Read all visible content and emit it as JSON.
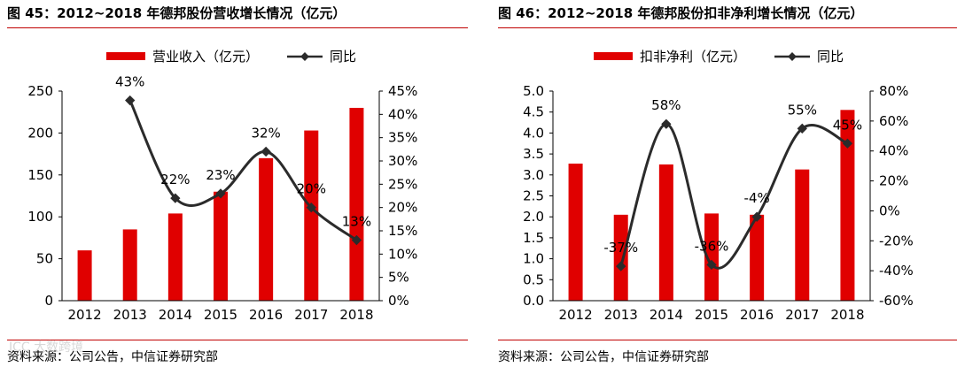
{
  "charts": [
    {
      "figure_title": "图 45：2012~2018 年德邦股份营收增长情况（亿元）",
      "source": "资料来源：公司公告，中信证券研究部",
      "legend": {
        "bar": "营业收入（亿元）",
        "line": "同比"
      }
    },
    {
      "figure_title": "图 46：2012~2018 年德邦股份扣非净利增长情况（亿元）",
      "source": "资料来源：公司公告，中信证券研究部",
      "legend": {
        "bar": "扣非净利（亿元）",
        "line": "同比"
      }
    }
  ],
  "watermark": "ICC 大数跨境",
  "colors": {
    "bar": "#e00000",
    "line": "#2b2b2b",
    "accent_rule": "#c00000"
  },
  "chart_data": [
    {
      "type": "bar+line",
      "title": "2012~2018 年德邦股份营收增长情况（亿元）",
      "categories": [
        "2012",
        "2013",
        "2014",
        "2015",
        "2016",
        "2017",
        "2018"
      ],
      "series": [
        {
          "name": "营业收入（亿元）",
          "type": "bar",
          "axis": "left",
          "values": [
            60,
            85,
            104,
            130,
            170,
            203,
            230
          ]
        },
        {
          "name": "同比",
          "type": "line",
          "axis": "right",
          "values": [
            null,
            43,
            22,
            23,
            32,
            20,
            13
          ],
          "labels": [
            "",
            "43%",
            "22%",
            "23%",
            "32%",
            "20%",
            "13%"
          ]
        }
      ],
      "left_axis": {
        "min": 0,
        "max": 250,
        "step": 50,
        "ticks": [
          "0",
          "50",
          "100",
          "150",
          "200",
          "250"
        ]
      },
      "right_axis": {
        "min": 0,
        "max": 45,
        "step": 5,
        "ticks": [
          "0%",
          "5%",
          "10%",
          "15%",
          "20%",
          "25%",
          "30%",
          "35%",
          "40%",
          "45%"
        ]
      }
    },
    {
      "type": "bar+line",
      "title": "2012~2018 年德邦股份扣非净利增长情况（亿元）",
      "categories": [
        "2012",
        "2013",
        "2014",
        "2015",
        "2016",
        "2017",
        "2018"
      ],
      "series": [
        {
          "name": "扣非净利（亿元）",
          "type": "bar",
          "axis": "left",
          "values": [
            3.27,
            2.05,
            3.25,
            2.08,
            2.05,
            3.13,
            4.55
          ]
        },
        {
          "name": "同比",
          "type": "line",
          "axis": "right",
          "values": [
            null,
            -37,
            58,
            -36,
            -4,
            55,
            45
          ],
          "labels": [
            "",
            "-37%",
            "58%",
            "-36%",
            "-4%",
            "55%",
            "45%"
          ]
        }
      ],
      "left_axis": {
        "min": 0,
        "max": 5,
        "step": 0.5,
        "ticks": [
          "0.0",
          "0.5",
          "1.0",
          "1.5",
          "2.0",
          "2.5",
          "3.0",
          "3.5",
          "4.0",
          "4.5",
          "5.0"
        ]
      },
      "right_axis": {
        "min": -60,
        "max": 80,
        "step": 20,
        "ticks": [
          "-60%",
          "-40%",
          "-20%",
          "0%",
          "20%",
          "40%",
          "60%",
          "80%"
        ]
      }
    }
  ]
}
